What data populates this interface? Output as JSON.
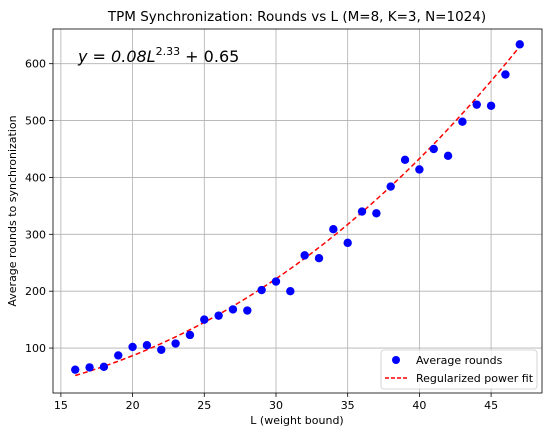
{
  "chart_data": {
    "type": "scatter",
    "title": "TPM Synchronization: Rounds vs L (M=8, K=3, N=1024)",
    "xlabel": "L (weight bound)",
    "ylabel": "Average rounds to synchronization",
    "xlim": [
      14.45,
      48.55
    ],
    "ylim": [
      21,
      661
    ],
    "xticks": [
      15,
      20,
      25,
      30,
      35,
      40,
      45
    ],
    "yticks": [
      100,
      200,
      300,
      400,
      500,
      600
    ],
    "grid": true,
    "legend_position": "lower-right",
    "annotation": {
      "prefix": "y = 0.08L",
      "exponent": "2.33",
      "suffix": " + 0.65"
    },
    "series": [
      {
        "name": "Average rounds",
        "kind": "scatter",
        "color": "#0000ff",
        "x": [
          16,
          17,
          18,
          19,
          20,
          21,
          22,
          23,
          24,
          25,
          26,
          27,
          28,
          29,
          30,
          31,
          32,
          33,
          34,
          35,
          36,
          37,
          38,
          39,
          40,
          41,
          42,
          43,
          44,
          45,
          46,
          47
        ],
        "y": [
          62,
          66,
          67,
          87,
          102,
          105,
          97,
          108,
          123,
          150,
          157,
          168,
          166,
          202,
          217,
          200,
          263,
          258,
          309,
          285,
          340,
          337,
          384,
          431,
          414,
          450,
          438,
          498,
          528,
          526,
          581,
          634
        ]
      },
      {
        "name": "Regularized power fit",
        "kind": "line",
        "color": "#ff0000",
        "dash": true,
        "coef": 0.08,
        "power": 2.33,
        "intercept": 0.65,
        "x_range": [
          16,
          47
        ]
      }
    ]
  }
}
